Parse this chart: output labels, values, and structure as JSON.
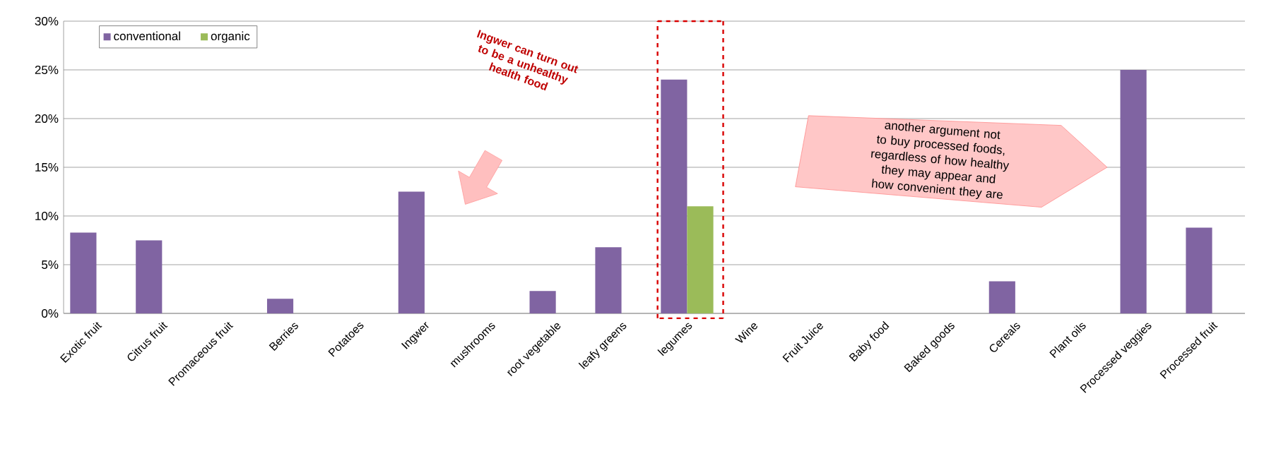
{
  "chart_data": {
    "type": "bar",
    "categories": [
      "Exotic fruit",
      "Citrus fruit",
      "Promaceous fruit",
      "Berries",
      "Potatoes",
      "Ingwer",
      "mushrooms",
      "root vegetable",
      "leafy greens",
      "legumes",
      "Wine",
      "Fruit Juice",
      "Baby food",
      "Baked goods",
      "Cereals",
      "Plant oils",
      "Processed veggies",
      "Processed fruit"
    ],
    "series": [
      {
        "name": "conventional",
        "color": "#8064a2",
        "values": [
          8.3,
          7.5,
          0,
          1.5,
          0,
          12.5,
          0,
          2.3,
          6.8,
          24.0,
          0,
          0,
          0,
          0,
          3.3,
          0,
          25.0,
          8.8
        ]
      },
      {
        "name": "organic",
        "color": "#9bbb59",
        "values": [
          0,
          0,
          0,
          0,
          0,
          0,
          0,
          0,
          0,
          11.0,
          0,
          0,
          0,
          0,
          0,
          0,
          0,
          0
        ]
      }
    ],
    "ylim": [
      0,
      30
    ],
    "yticks": [
      {
        "value": 0,
        "label": "0%"
      },
      {
        "value": 5,
        "label": "5%"
      },
      {
        "value": 10,
        "label": "10%"
      },
      {
        "value": 15,
        "label": "15%"
      },
      {
        "value": 20,
        "label": "20%"
      },
      {
        "value": 25,
        "label": "25%"
      },
      {
        "value": 30,
        "label": "30%"
      }
    ],
    "grid": "y",
    "legend": "top left",
    "annotations": [
      "Ingwer can turn out to be a unhealthy health food",
      "another argument not to buy processed foods, regardless of how healthy they may appear and how convenient they are"
    ]
  }
}
